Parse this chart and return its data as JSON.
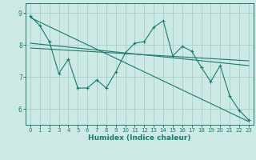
{
  "bg_color": "#cce9e5",
  "grid_color": "#aad4cc",
  "line_color": "#1a7a6e",
  "xlabel": "Humidex (Indice chaleur)",
  "xlim": [
    -0.5,
    23.5
  ],
  "ylim": [
    5.5,
    9.3
  ],
  "yticks": [
    6,
    7,
    8,
    9
  ],
  "xticks": [
    0,
    1,
    2,
    3,
    4,
    5,
    6,
    7,
    8,
    9,
    10,
    11,
    12,
    13,
    14,
    15,
    16,
    17,
    18,
    19,
    20,
    21,
    22,
    23
  ],
  "series1_x": [
    0,
    1,
    2,
    3,
    4,
    5,
    6,
    7,
    8,
    9,
    10,
    11,
    12,
    13,
    14,
    15,
    16,
    17,
    18,
    19,
    20,
    21,
    22,
    23
  ],
  "series1_y": [
    8.9,
    8.6,
    8.1,
    7.1,
    7.55,
    6.65,
    6.65,
    6.9,
    6.65,
    7.15,
    7.75,
    8.05,
    8.1,
    8.55,
    8.75,
    7.65,
    7.95,
    7.8,
    7.3,
    6.85,
    7.35,
    6.4,
    5.95,
    5.65
  ],
  "series2_x": [
    0,
    23
  ],
  "series2_y": [
    8.85,
    5.6
  ],
  "series3_x": [
    0,
    23
  ],
  "series3_y": [
    8.05,
    7.35
  ],
  "series4_x": [
    0,
    23
  ],
  "series4_y": [
    7.9,
    7.5
  ]
}
